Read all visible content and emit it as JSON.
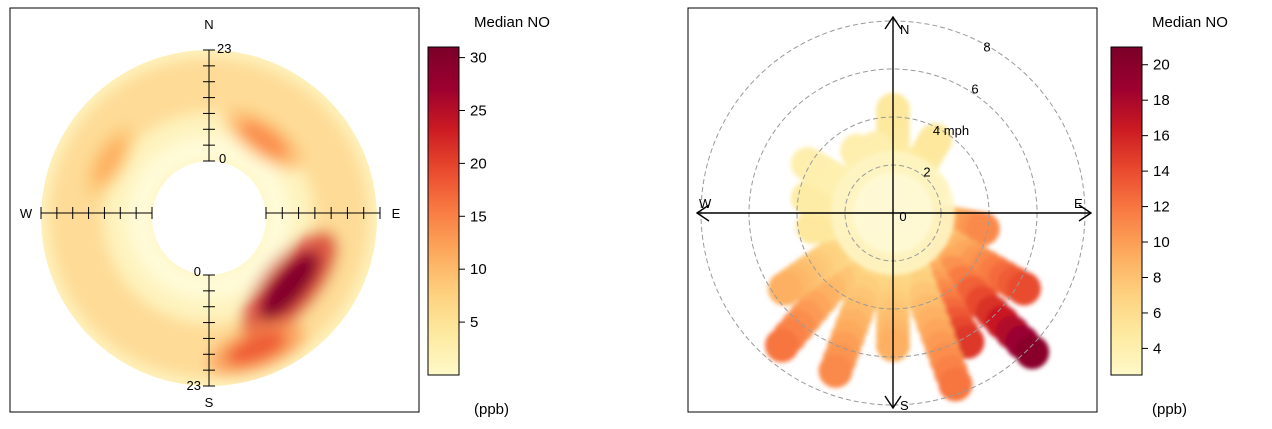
{
  "chart_data": [
    {
      "type": "heatmap",
      "subtype": "polar-annulus",
      "description_of_axes": "radius = hour of day, angle = wind direction",
      "compass": {
        "north": "N",
        "south": "S",
        "east": "E",
        "west": "W"
      },
      "radial_ticks": {
        "north_inner": "0",
        "north_outer": "23",
        "south_inner": "0",
        "south_outer": "23"
      },
      "hour_range": [
        0,
        23
      ],
      "colorbar": {
        "title": "Median NO",
        "units": "(ppb)",
        "ticks": [
          "5",
          "10",
          "15",
          "20",
          "25",
          "30"
        ],
        "range": [
          0,
          31
        ],
        "colors": [
          "#FFF9C8",
          "#FDEAA0",
          "#FDD07E",
          "#FDA95C",
          "#F97B43",
          "#E94A2E",
          "#CB1A22",
          "#9C0030",
          "#7A0029"
        ]
      },
      "hotspots": [
        {
          "direction_deg": 130,
          "hour": 10,
          "value": 30
        },
        {
          "direction_deg": 160,
          "hour": 17,
          "value": 18
        },
        {
          "direction_deg": 35,
          "hour": 8,
          "value": 14
        },
        {
          "direction_deg": 300,
          "hour": 12,
          "value": 11
        }
      ]
    },
    {
      "type": "scatter",
      "subtype": "polar-plot",
      "description_of_axes": "radius = wind speed (mph), angle = wind direction",
      "compass": {
        "north": "N",
        "south": "S",
        "east": "E",
        "west": "W"
      },
      "speed_rings": [
        "0",
        "2",
        "4 mph",
        "6",
        "8"
      ],
      "speed_range": [
        0,
        8
      ],
      "colorbar": {
        "title": "Median NO",
        "units": "(ppb)",
        "ticks": [
          "4",
          "6",
          "8",
          "10",
          "12",
          "14",
          "16",
          "18",
          "20"
        ],
        "range": [
          2.5,
          21
        ],
        "colors": [
          "#FFF9C8",
          "#FDEAA0",
          "#FDD07E",
          "#FDA95C",
          "#F97B43",
          "#E94A2E",
          "#CB1A22",
          "#9C0030",
          "#7A0029"
        ]
      },
      "spokes": [
        {
          "direction_deg": 0,
          "max_speed": 4.3,
          "end_value": 5
        },
        {
          "direction_deg": 30,
          "max_speed": 3.5,
          "end_value": 5
        },
        {
          "direction_deg": 60,
          "max_speed": 1.8,
          "end_value": 5
        },
        {
          "direction_deg": 100,
          "max_speed": 3.8,
          "end_value": 11
        },
        {
          "direction_deg": 120,
          "max_speed": 6.3,
          "end_value": 14
        },
        {
          "direction_deg": 135,
          "max_speed": 8.2,
          "end_value": 20
        },
        {
          "direction_deg": 150,
          "max_speed": 6.2,
          "end_value": 15
        },
        {
          "direction_deg": 160,
          "max_speed": 7.6,
          "end_value": 12
        },
        {
          "direction_deg": 180,
          "max_speed": 5.5,
          "end_value": 9
        },
        {
          "direction_deg": 200,
          "max_speed": 7.0,
          "end_value": 11
        },
        {
          "direction_deg": 220,
          "max_speed": 7.2,
          "end_value": 12
        },
        {
          "direction_deg": 235,
          "max_speed": 5.5,
          "end_value": 9
        },
        {
          "direction_deg": 260,
          "max_speed": 3.4,
          "end_value": 5
        },
        {
          "direction_deg": 280,
          "max_speed": 3.6,
          "end_value": 4.5
        },
        {
          "direction_deg": 300,
          "max_speed": 4.1,
          "end_value": 4
        },
        {
          "direction_deg": 330,
          "max_speed": 3.0,
          "end_value": 4
        },
        {
          "direction_deg": 345,
          "max_speed": 2.8,
          "end_value": 4
        }
      ]
    }
  ]
}
